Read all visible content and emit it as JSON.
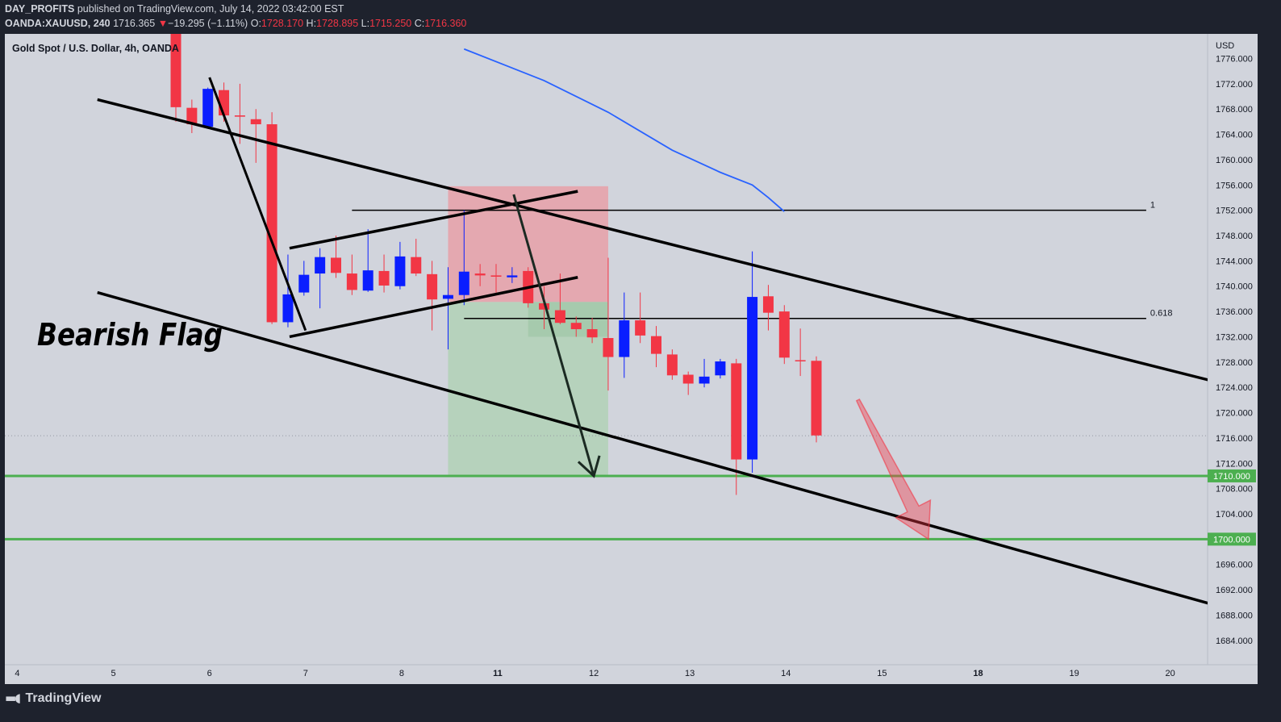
{
  "header": {
    "publisher": "DAY_PROFITS",
    "published_text": "published on TradingView.com, July 14, 2022 03:42:00 EST",
    "symbol": "OANDA:XAUUSD, 240",
    "last": "1716.365",
    "change_arrow": "▼",
    "change": "−19.295 (−1.11%)",
    "o_label": "O:",
    "o_value": "1728.170",
    "h_label": "H:",
    "h_value": "1728.895",
    "l_label": "L:",
    "l_value": "1715.250",
    "c_label": "C:",
    "c_value": "1716.360"
  },
  "footer": {
    "brand": "TradingView",
    "brand_icon": "tradingview-logo-icon"
  },
  "colors": {
    "bull": "#0a1eff",
    "bear": "#f23645",
    "chart_bg": "#d1d4dc",
    "frame_bg": "#1e222d",
    "support": "#4caf50",
    "ma": "#2962ff",
    "stop_zone": "#e8a0a8",
    "target_zone": "#b3d1b8",
    "hint_arrow": "#f23645"
  },
  "chart_data": {
    "type": "candlestick",
    "title": "Gold Spot / U.S. Dollar, 4h, OANDA",
    "currency_label": "USD",
    "ylim": [
      1682,
      1778
    ],
    "y_ticks": [
      "1776.000",
      "1772.000",
      "1768.000",
      "1764.000",
      "1760.000",
      "1756.000",
      "1752.000",
      "1748.000",
      "1744.000",
      "1740.000",
      "1736.000",
      "1732.000",
      "1728.000",
      "1724.000",
      "1720.000",
      "1716.000",
      "1712.000",
      "1708.000",
      "1704.000",
      "1700.000",
      "1696.000",
      "1692.000",
      "1688.000",
      "1684.000"
    ],
    "x_ticks": [
      {
        "label": "4",
        "bold": false,
        "i": -9.9
      },
      {
        "label": "5",
        "bold": false,
        "i": -3.9
      },
      {
        "label": "6",
        "bold": false,
        "i": 2.1
      },
      {
        "label": "7",
        "bold": false,
        "i": 8.1
      },
      {
        "label": "8",
        "bold": false,
        "i": 14.1
      },
      {
        "label": "11",
        "bold": true,
        "i": 20.1
      },
      {
        "label": "12",
        "bold": false,
        "i": 26.1
      },
      {
        "label": "13",
        "bold": false,
        "i": 32.1
      },
      {
        "label": "14",
        "bold": false,
        "i": 38.1
      },
      {
        "label": "15",
        "bold": false,
        "i": 44.1
      },
      {
        "label": "18",
        "bold": true,
        "i": 50.1
      },
      {
        "label": "19",
        "bold": false,
        "i": 56.1
      },
      {
        "label": "20",
        "bold": false,
        "i": 62.1
      }
    ],
    "candles": [
      {
        "o": 1790.0,
        "h": 1792.0,
        "l": 1766.0,
        "c": 1768.3
      },
      {
        "o": 1768.2,
        "h": 1769.5,
        "l": 1764.2,
        "c": 1765.6
      },
      {
        "o": 1765.2,
        "h": 1771.4,
        "l": 1765.0,
        "c": 1771.2
      },
      {
        "o": 1771.0,
        "h": 1772.2,
        "l": 1766.0,
        "c": 1767.0
      },
      {
        "o": 1767.0,
        "h": 1772.0,
        "l": 1762.5,
        "c": 1766.8
      },
      {
        "o": 1766.4,
        "h": 1768.0,
        "l": 1759.5,
        "c": 1765.6
      },
      {
        "o": 1765.6,
        "h": 1767.5,
        "l": 1734.0,
        "c": 1734.3
      },
      {
        "o": 1734.3,
        "h": 1745.0,
        "l": 1733.5,
        "c": 1738.7
      },
      {
        "o": 1739.0,
        "h": 1744.0,
        "l": 1738.5,
        "c": 1741.8
      },
      {
        "o": 1742.0,
        "h": 1746.0,
        "l": 1736.5,
        "c": 1744.6
      },
      {
        "o": 1744.5,
        "h": 1748.0,
        "l": 1741.3,
        "c": 1742.1
      },
      {
        "o": 1742.0,
        "h": 1745.0,
        "l": 1738.6,
        "c": 1739.4
      },
      {
        "o": 1739.3,
        "h": 1749.0,
        "l": 1739.1,
        "c": 1742.5
      },
      {
        "o": 1742.4,
        "h": 1745.0,
        "l": 1739.0,
        "c": 1740.1
      },
      {
        "o": 1740.0,
        "h": 1747.0,
        "l": 1739.5,
        "c": 1744.7
      },
      {
        "o": 1744.6,
        "h": 1747.5,
        "l": 1741.6,
        "c": 1742.0
      },
      {
        "o": 1741.9,
        "h": 1744.0,
        "l": 1733.0,
        "c": 1737.9
      },
      {
        "o": 1738.0,
        "h": 1743.0,
        "l": 1730.0,
        "c": 1738.6
      },
      {
        "o": 1738.6,
        "h": 1752.0,
        "l": 1737.0,
        "c": 1742.3
      },
      {
        "o": 1742.0,
        "h": 1743.5,
        "l": 1740.0,
        "c": 1741.7
      },
      {
        "o": 1741.7,
        "h": 1743.5,
        "l": 1739.0,
        "c": 1741.5
      },
      {
        "o": 1741.4,
        "h": 1743.0,
        "l": 1740.5,
        "c": 1741.7
      },
      {
        "o": 1742.4,
        "h": 1743.0,
        "l": 1736.6,
        "c": 1737.3
      },
      {
        "o": 1737.3,
        "h": 1740.0,
        "l": 1733.2,
        "c": 1736.3
      },
      {
        "o": 1736.2,
        "h": 1742.0,
        "l": 1734.0,
        "c": 1734.2
      },
      {
        "o": 1734.2,
        "h": 1735.2,
        "l": 1732.0,
        "c": 1733.2
      },
      {
        "o": 1733.2,
        "h": 1735.0,
        "l": 1731.0,
        "c": 1731.9
      },
      {
        "o": 1731.8,
        "h": 1744.5,
        "l": 1723.5,
        "c": 1728.8
      },
      {
        "o": 1728.8,
        "h": 1739.0,
        "l": 1725.5,
        "c": 1734.6
      },
      {
        "o": 1734.6,
        "h": 1739.0,
        "l": 1731.0,
        "c": 1732.2
      },
      {
        "o": 1732.1,
        "h": 1733.7,
        "l": 1727.2,
        "c": 1729.3
      },
      {
        "o": 1729.2,
        "h": 1730.0,
        "l": 1725.2,
        "c": 1725.9
      },
      {
        "o": 1726.0,
        "h": 1726.5,
        "l": 1722.8,
        "c": 1724.6
      },
      {
        "o": 1724.6,
        "h": 1728.5,
        "l": 1724.0,
        "c": 1725.7
      },
      {
        "o": 1725.9,
        "h": 1728.5,
        "l": 1725.4,
        "c": 1728.1
      },
      {
        "o": 1727.8,
        "h": 1728.5,
        "l": 1707.0,
        "c": 1712.6
      },
      {
        "o": 1712.6,
        "h": 1745.5,
        "l": 1710.5,
        "c": 1738.3
      },
      {
        "o": 1738.4,
        "h": 1740.2,
        "l": 1733.0,
        "c": 1735.8
      },
      {
        "o": 1736.0,
        "h": 1737.0,
        "l": 1727.7,
        "c": 1728.7
      },
      {
        "o": 1728.3,
        "h": 1733.3,
        "l": 1725.8,
        "c": 1728.2
      },
      {
        "o": 1728.2,
        "h": 1728.9,
        "l": 1715.3,
        "c": 1716.4
      }
    ],
    "moving_average": [
      {
        "i": 18.0,
        "v": 1777.5
      },
      {
        "i": 23.0,
        "v": 1772.5
      },
      {
        "i": 27.0,
        "v": 1767.5
      },
      {
        "i": 31.0,
        "v": 1761.5
      },
      {
        "i": 34.0,
        "v": 1758.0
      },
      {
        "i": 36.0,
        "v": 1756.0
      },
      {
        "i": 37.0,
        "v": 1754.0
      },
      {
        "i": 38.0,
        "v": 1751.8
      }
    ],
    "current_price": 1716.36,
    "support_levels": [
      {
        "value": 1710.0,
        "label": "1710.000"
      },
      {
        "value": 1700.0,
        "label": "1700.000"
      }
    ],
    "fib_levels": [
      {
        "ratio_label": "1",
        "value": 1752.0,
        "i_start": 11.0,
        "i_end": 60.6
      },
      {
        "ratio_label": "0.618",
        "value": 1734.9,
        "i_start": 18.0,
        "i_end": 60.6
      }
    ],
    "channel_lines": [
      {
        "name": "upper",
        "i1": -4.9,
        "v1": 1769.5,
        "i2": 67.1,
        "v2": 1723.5
      },
      {
        "name": "lower",
        "i1": -4.9,
        "v1": 1739.0,
        "i2": 67.1,
        "v2": 1688.0
      }
    ],
    "flag_lines": [
      {
        "name": "flag-upper",
        "i1": 7.1,
        "v1": 1746.0,
        "i2": 25.1,
        "v2": 1755.0
      },
      {
        "name": "flag-lower",
        "i1": 7.1,
        "v1": 1732.0,
        "i2": 25.1,
        "v2": 1741.4
      }
    ],
    "flagpole": {
      "i1": 2.1,
      "v1": 1773.0,
      "i2": 8.1,
      "v2": 1733.0
    },
    "projection_arrow": {
      "i1": 21.1,
      "v1": 1754.5,
      "i2": 26.1,
      "v2": 1710.0
    },
    "position_zones": {
      "i_start": 17.0,
      "i_end": 27.0,
      "stop": {
        "top": 1755.8,
        "bottom": 1737.5
      },
      "target": {
        "top": 1737.5,
        "bottom": 1710.0
      },
      "entry_box": {
        "i_start": 22.0,
        "i_end": 27.0,
        "top": 1737.5,
        "bottom": 1732.0
      }
    },
    "hint_arrow": {
      "i_from": 42.6,
      "v_from": 1722.0,
      "i_to": 47.0,
      "v_to": 1700.0
    },
    "annotation": {
      "text": "Bearish Flag"
    }
  }
}
